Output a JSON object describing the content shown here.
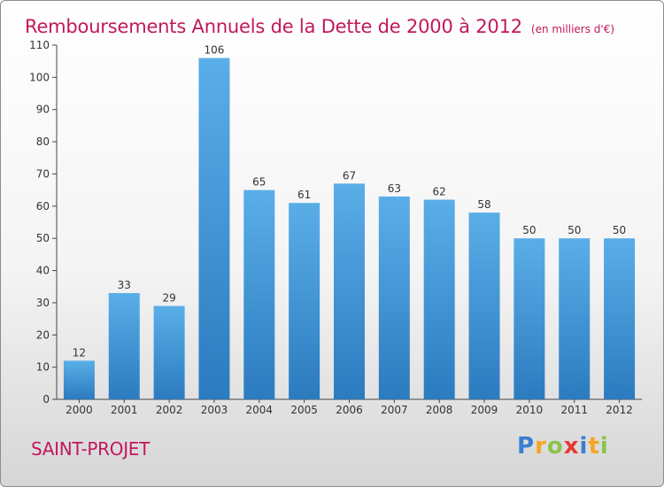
{
  "title": "Remboursements Annuels de la Dette de 2000 à 2012",
  "unit": "(en milliers d'€)",
  "commune": "SAINT-PROJET",
  "logo": {
    "text": "Proxiti",
    "letters": [
      {
        "char": "P",
        "color": "#3a7fd1"
      },
      {
        "char": "r",
        "color": "#f5a623"
      },
      {
        "char": "o",
        "color": "#8bc34a"
      },
      {
        "char": "x",
        "color": "#e53935"
      },
      {
        "char": "i",
        "color": "#3a7fd1"
      },
      {
        "char": "t",
        "color": "#f5a623"
      },
      {
        "char": "i",
        "color": "#8bc34a"
      }
    ]
  },
  "colors": {
    "bar": "#4a9ee0",
    "bar_dark": "#2e7fc4",
    "title": "#c2185b",
    "grid": "#e0e0e0"
  },
  "chart_data": {
    "type": "bar",
    "title": "Remboursements Annuels de la Dette de 2000 à 2012",
    "unit": "(en milliers d'€)",
    "categories": [
      "2000",
      "2001",
      "2002",
      "2003",
      "2004",
      "2005",
      "2006",
      "2007",
      "2008",
      "2009",
      "2010",
      "2011",
      "2012"
    ],
    "values": [
      12,
      33,
      29,
      106,
      65,
      61,
      67,
      63,
      62,
      58,
      50,
      50,
      50
    ],
    "ylim": [
      0,
      110
    ],
    "yticks": [
      0,
      10,
      20,
      30,
      40,
      50,
      60,
      70,
      80,
      90,
      100,
      110
    ],
    "grid": false
  }
}
